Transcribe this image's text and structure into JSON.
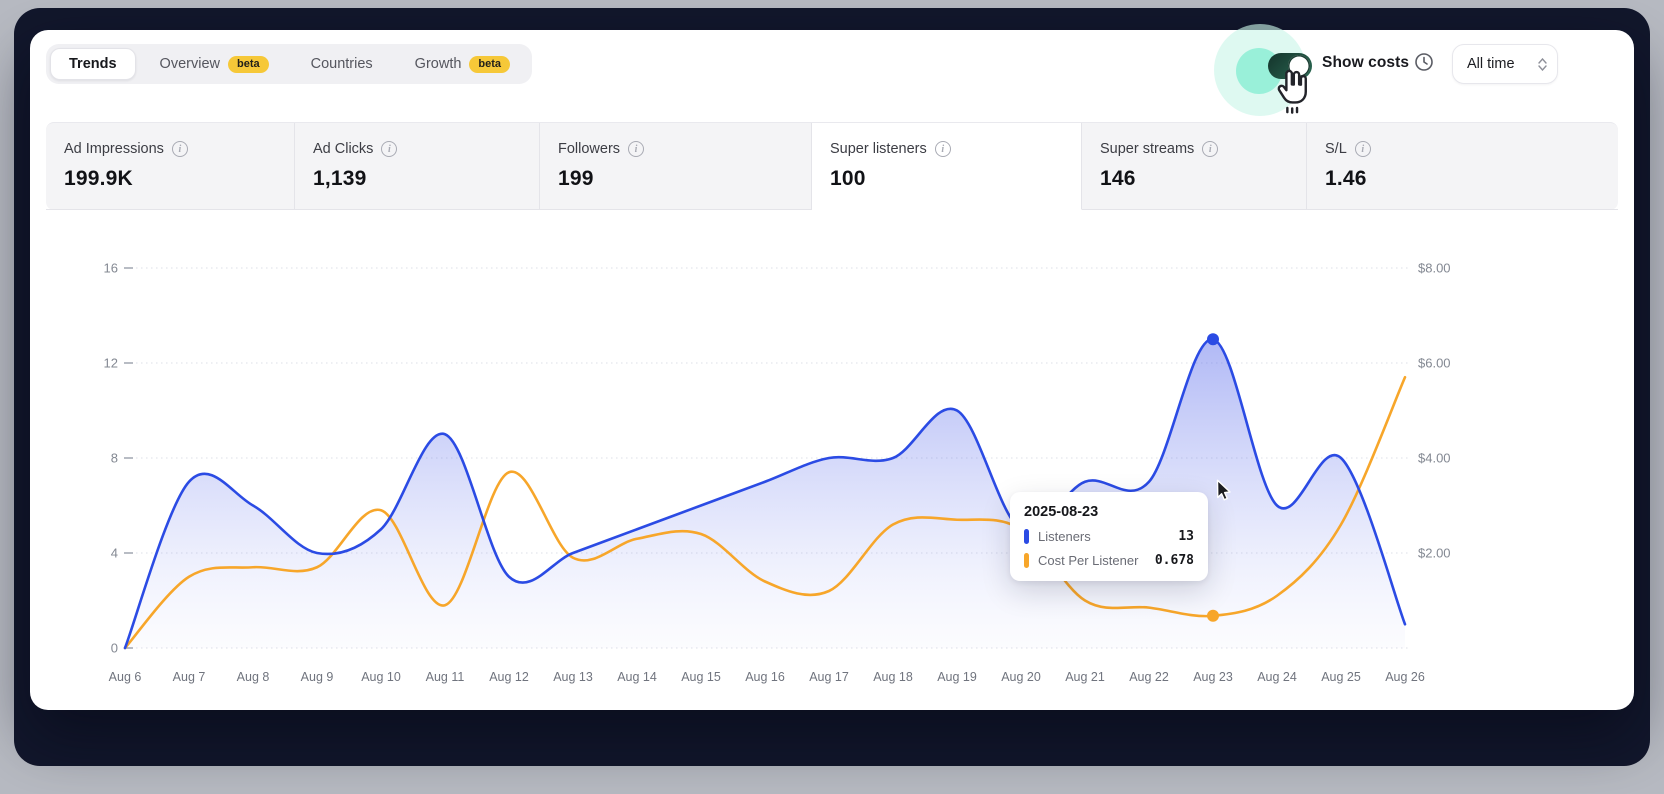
{
  "tabs": {
    "items": [
      {
        "label": "Trends",
        "selected": true,
        "badge": ""
      },
      {
        "label": "Overview",
        "selected": false,
        "badge": "beta"
      },
      {
        "label": "Countries",
        "selected": false,
        "badge": ""
      },
      {
        "label": "Growth",
        "selected": false,
        "badge": "beta"
      }
    ]
  },
  "controls": {
    "show_costs_label": "Show costs",
    "show_costs_toggle_on": true,
    "time_range": {
      "value": "All time"
    }
  },
  "stats": {
    "cards": [
      {
        "label": "Ad Impressions",
        "value": "199.9K",
        "selected": false
      },
      {
        "label": "Ad Clicks",
        "value": "1,139",
        "selected": false
      },
      {
        "label": "Followers",
        "value": "199",
        "selected": false
      },
      {
        "label": "Super listeners",
        "value": "100",
        "selected": true
      },
      {
        "label": "Super streams",
        "value": "146",
        "selected": false
      },
      {
        "label": "S/L",
        "value": "1.46",
        "selected": false
      }
    ]
  },
  "chart_data": {
    "type": "line",
    "categories": [
      "Aug 6",
      "Aug 7",
      "Aug 8",
      "Aug 9",
      "Aug 10",
      "Aug 11",
      "Aug 12",
      "Aug 13",
      "Aug 14",
      "Aug 15",
      "Aug 16",
      "Aug 17",
      "Aug 18",
      "Aug 19",
      "Aug 20",
      "Aug 21",
      "Aug 22",
      "Aug 23",
      "Aug 24",
      "Aug 25",
      "Aug 26"
    ],
    "series": [
      {
        "name": "Listeners",
        "axis": "left",
        "style": "area-line",
        "color": "#2b4be4",
        "values": [
          0,
          7,
          6,
          4,
          5,
          9,
          3,
          4,
          5,
          6,
          7,
          8,
          8,
          10,
          5,
          7,
          7,
          13,
          6,
          8,
          1
        ]
      },
      {
        "name": "Cost Per Listener",
        "axis": "right",
        "style": "line",
        "color": "#f7a62a",
        "values": [
          0,
          1.5,
          1.7,
          1.7,
          2.9,
          0.9,
          3.7,
          1.9,
          2.3,
          2.4,
          1.4,
          1.2,
          2.6,
          2.7,
          2.5,
          1.0,
          0.85,
          0.678,
          1.1,
          2.6,
          5.7
        ]
      }
    ],
    "y_left": {
      "ticks": [
        16,
        12,
        8,
        4,
        0
      ],
      "labels": [
        "16",
        "12",
        "8",
        "4",
        "0"
      ],
      "range": [
        0,
        16
      ]
    },
    "y_right": {
      "ticks": [
        8,
        6,
        4,
        2
      ],
      "labels": [
        "$8.00",
        "$6.00",
        "$4.00",
        "$2.00"
      ],
      "range": [
        0,
        8
      ]
    },
    "grid": "dotted-horizontal",
    "highlight": {
      "category": "Aug 23",
      "date": "2025-08-23"
    }
  },
  "tooltip": {
    "date": "2025-08-23",
    "rows": [
      {
        "label": "Listeners",
        "value": "13",
        "color": "#2b4be4"
      },
      {
        "label": "Cost Per Listener",
        "value": "0.678",
        "color": "#f7a62a"
      }
    ]
  },
  "colors": {
    "accent_blue": "#2b4be4",
    "accent_orange": "#f7a62a",
    "toggle_green": "#1f5241",
    "glow_mint": "#8deed5",
    "beta_yellow": "#f6c838",
    "frame_dark": "#12172c",
    "stats_gray": "#f4f4f6"
  }
}
